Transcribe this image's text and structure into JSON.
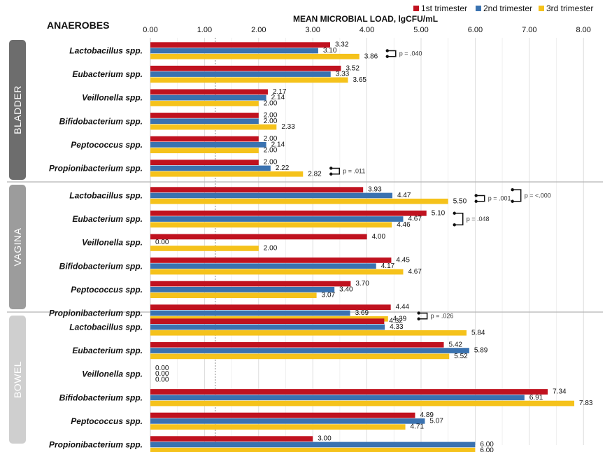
{
  "chart_data": {
    "type": "bar",
    "orientation": "horizontal",
    "header_left": "ANAEROBES",
    "title": "MEAN MICROBIAL LOAD, lgCFU/mL",
    "xlim": [
      0,
      8
    ],
    "x_ticks": [
      "0.00",
      "1.00",
      "2.00",
      "3.00",
      "4.00",
      "5.00",
      "6.00",
      "7.00",
      "8.00"
    ],
    "reference_line_x": 1.2,
    "grid": "vertical",
    "legend_position": "top-right",
    "series": [
      {
        "name": "1st trimester",
        "color": "#c0121f"
      },
      {
        "name": "2nd trimester",
        "color": "#3a72b0"
      },
      {
        "name": "3rd trimester",
        "color": "#f5c21b"
      }
    ],
    "categories": [
      "Lactobacillus spp.",
      "Eubacterium spp.",
      "Veillonella spp.",
      "Bifidobacterium spp.",
      "Peptococcus spp.",
      "Propionibacterium spp."
    ],
    "panels": [
      {
        "name": "BLADDER",
        "panel_color": "#6d6d6d",
        "values": [
          [
            "3.32",
            "3.10",
            "3.86"
          ],
          [
            "3.52",
            "3.33",
            "3.65"
          ],
          [
            "2.17",
            "2.14",
            "2.00"
          ],
          [
            "2.00",
            "2.00",
            "2.33"
          ],
          [
            "2.00",
            "2.14",
            "2.00"
          ],
          [
            "2.00",
            "2.22",
            "2.82"
          ]
        ],
        "annotations": [
          {
            "category": 0,
            "from": 1,
            "to": 2,
            "text": "p = .040"
          },
          {
            "category": 5,
            "from": 1,
            "to": 2,
            "text": "p = .011"
          }
        ]
      },
      {
        "name": "VAGINA",
        "panel_color": "#9c9c9c",
        "values": [
          [
            "3.93",
            "4.47",
            "5.50"
          ],
          [
            "5.10",
            "4.67",
            "4.46"
          ],
          [
            "4.00",
            "0.00",
            "2.00"
          ],
          [
            "4.45",
            "4.17",
            "4.67"
          ],
          [
            "3.70",
            "3.40",
            "3.07"
          ],
          [
            "4.44",
            "3.69",
            "4.39"
          ]
        ],
        "annotations": [
          {
            "category": 0,
            "from": 1,
            "to": 2,
            "text": "p = .001"
          },
          {
            "category": 0,
            "from": 0,
            "to": 2,
            "text": "p = <.000"
          },
          {
            "category": 1,
            "from": 0,
            "to": 2,
            "text": "p = .048"
          },
          {
            "category": 5,
            "from": 1,
            "to": 2,
            "text": "p = .026"
          }
        ]
      },
      {
        "name": "BOWEL",
        "panel_color": "#cfcfcf",
        "values": [
          [
            "4.32",
            "4.33",
            "5.84"
          ],
          [
            "5.42",
            "5.89",
            "5.52"
          ],
          [
            "0.00",
            "0.00",
            "0.00"
          ],
          [
            "7.34",
            "6.91",
            "7.83"
          ],
          [
            "4.89",
            "5.07",
            "4.71"
          ],
          [
            "3.00",
            "6.00",
            "6.00"
          ]
        ],
        "annotations": []
      }
    ]
  }
}
